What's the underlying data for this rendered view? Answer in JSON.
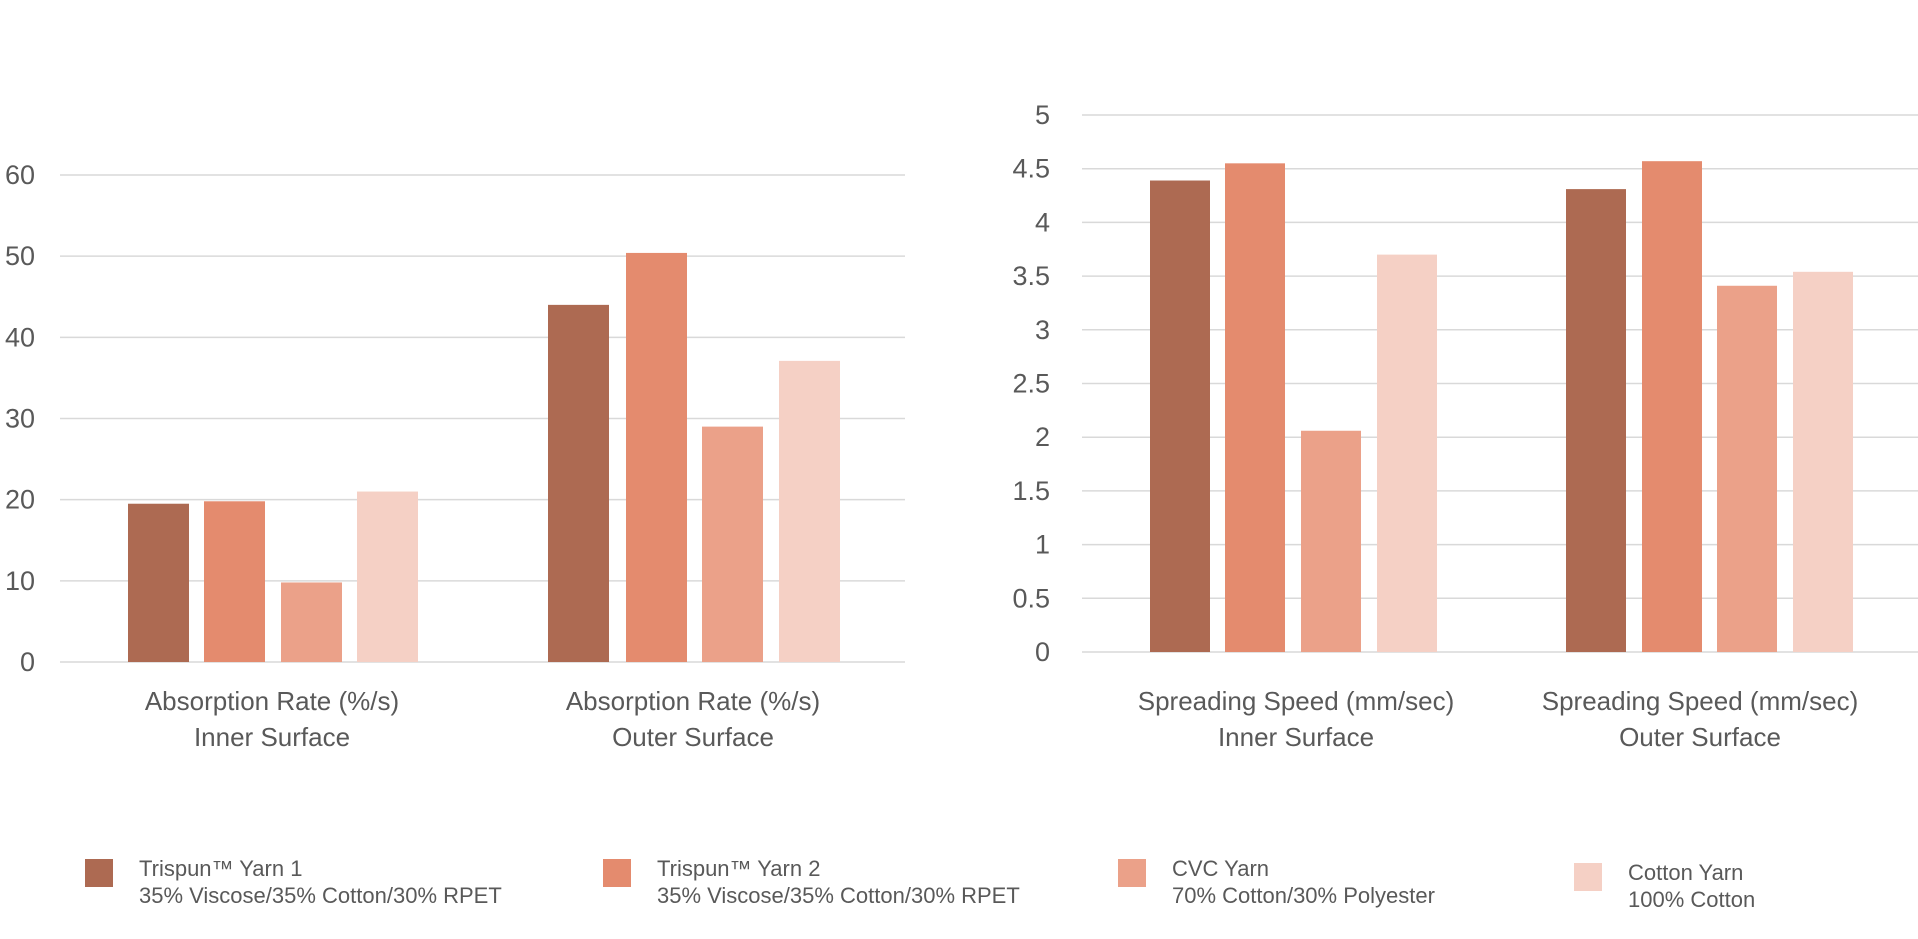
{
  "colors": [
    "#ad6a52",
    "#e48b6e",
    "#eba189",
    "#f5d0c5"
  ],
  "legend": [
    {
      "name": "Trispun™ Yarn 1",
      "detail": "35% Viscose/35% Cotton/30% RPET"
    },
    {
      "name": "Trispun™ Yarn 2",
      "detail": "35% Viscose/35% Cotton/30% RPET"
    },
    {
      "name": "CVC Yarn",
      "detail": "70% Cotton/30% Polyester"
    },
    {
      "name": "Cotton Yarn",
      "detail": "100% Cotton"
    }
  ],
  "chart_data": [
    {
      "type": "bar",
      "title": "",
      "xlabel": "",
      "ylabel": "",
      "ylim": [
        0,
        60
      ],
      "yticks": [
        "0",
        "10",
        "20",
        "30",
        "40",
        "50",
        "60"
      ],
      "grid": true,
      "legend_position": "bottom",
      "categories": [
        [
          "Absorption Rate (%/s)",
          "Inner Surface"
        ],
        [
          "Absorption Rate (%/s)",
          "Outer Surface"
        ]
      ],
      "series": [
        {
          "name": "Trispun™ Yarn 1",
          "values": [
            19.5,
            44
          ]
        },
        {
          "name": "Trispun™ Yarn 2",
          "values": [
            19.8,
            50.4
          ]
        },
        {
          "name": "CVC Yarn",
          "values": [
            9.8,
            29
          ]
        },
        {
          "name": "Cotton Yarn",
          "values": [
            21,
            37.1
          ]
        }
      ]
    },
    {
      "type": "bar",
      "title": "",
      "xlabel": "",
      "ylabel": "",
      "ylim": [
        0,
        5
      ],
      "yticks": [
        "0",
        "0.5",
        "1",
        "1.5",
        "2",
        "2.5",
        "3",
        "3.5",
        "4",
        "4.5",
        "5"
      ],
      "grid": true,
      "legend_position": "bottom",
      "categories": [
        [
          "Spreading Speed (mm/sec)",
          "Inner Surface"
        ],
        [
          "Spreading Speed (mm/sec)",
          "Outer Surface"
        ]
      ],
      "series": [
        {
          "name": "Trispun™ Yarn 1",
          "values": [
            4.39,
            4.31
          ]
        },
        {
          "name": "Trispun™ Yarn 2",
          "values": [
            4.55,
            4.57
          ]
        },
        {
          "name": "CVC Yarn",
          "values": [
            2.06,
            3.41
          ]
        },
        {
          "name": "Cotton Yarn",
          "values": [
            3.7,
            3.54
          ]
        }
      ]
    }
  ]
}
